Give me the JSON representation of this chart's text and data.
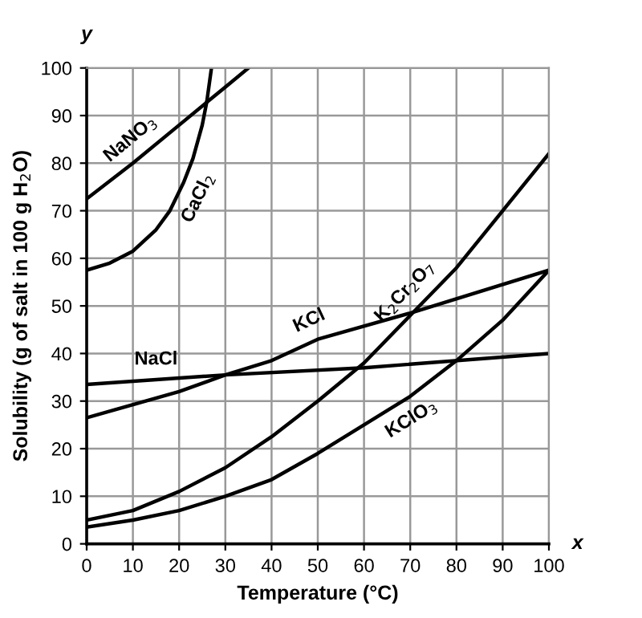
{
  "chart_data": {
    "type": "line",
    "xlabel": "Temperature (°C)",
    "ylabel": "Solubility (g of salt in 100 g H$_{2}$O)",
    "annotations": [
      "y",
      "x"
    ],
    "series": [
      {
        "name": "NaNO$_{3}$",
        "color": "#000000",
        "x": [
          0,
          10,
          20,
          30,
          35
        ],
        "values": [
          72.5,
          80,
          88,
          96,
          100
        ]
      },
      {
        "name": "CaCl$_{2}$",
        "color": "#000000",
        "x": [
          0,
          5,
          10,
          15,
          18,
          21,
          23,
          25,
          26,
          27
        ],
        "values": [
          57.5,
          59,
          61.5,
          66,
          70,
          76,
          81,
          88,
          93,
          100
        ]
      },
      {
        "name": "NaCl",
        "color": "#000000",
        "x": [
          0,
          30,
          60,
          100
        ],
        "values": [
          33.5,
          35.5,
          37,
          40
        ]
      },
      {
        "name": "KCl",
        "color": "#000000",
        "x": [
          0,
          20,
          30,
          40,
          50,
          70,
          100
        ],
        "values": [
          26.5,
          32,
          35.5,
          38.5,
          43,
          48.5,
          57.5
        ]
      },
      {
        "name": "K$_{2}$Cr$_{2}$O$_{7}$",
        "color": "#000000",
        "x": [
          0,
          10,
          20,
          30,
          40,
          50,
          60,
          70,
          80,
          90,
          100
        ],
        "values": [
          5,
          7,
          11,
          16,
          22.5,
          30,
          38,
          48,
          58,
          70,
          82
        ]
      },
      {
        "name": "KClO$_{3}$",
        "color": "#000000",
        "x": [
          0,
          10,
          20,
          30,
          40,
          50,
          60,
          70,
          80,
          90,
          100
        ],
        "values": [
          3.5,
          5,
          7,
          10,
          13.5,
          19,
          25,
          31,
          38.5,
          47,
          57.5
        ]
      }
    ],
    "xlim": [
      0,
      100
    ],
    "ylim": [
      0,
      100
    ],
    "xticks": [
      0,
      10,
      20,
      30,
      40,
      50,
      60,
      70,
      80,
      90,
      100
    ],
    "yticks": [
      0,
      10,
      20,
      30,
      40,
      50,
      60,
      70,
      80,
      90,
      100
    ],
    "grid": true,
    "marker": "none",
    "line_style": "solid"
  }
}
